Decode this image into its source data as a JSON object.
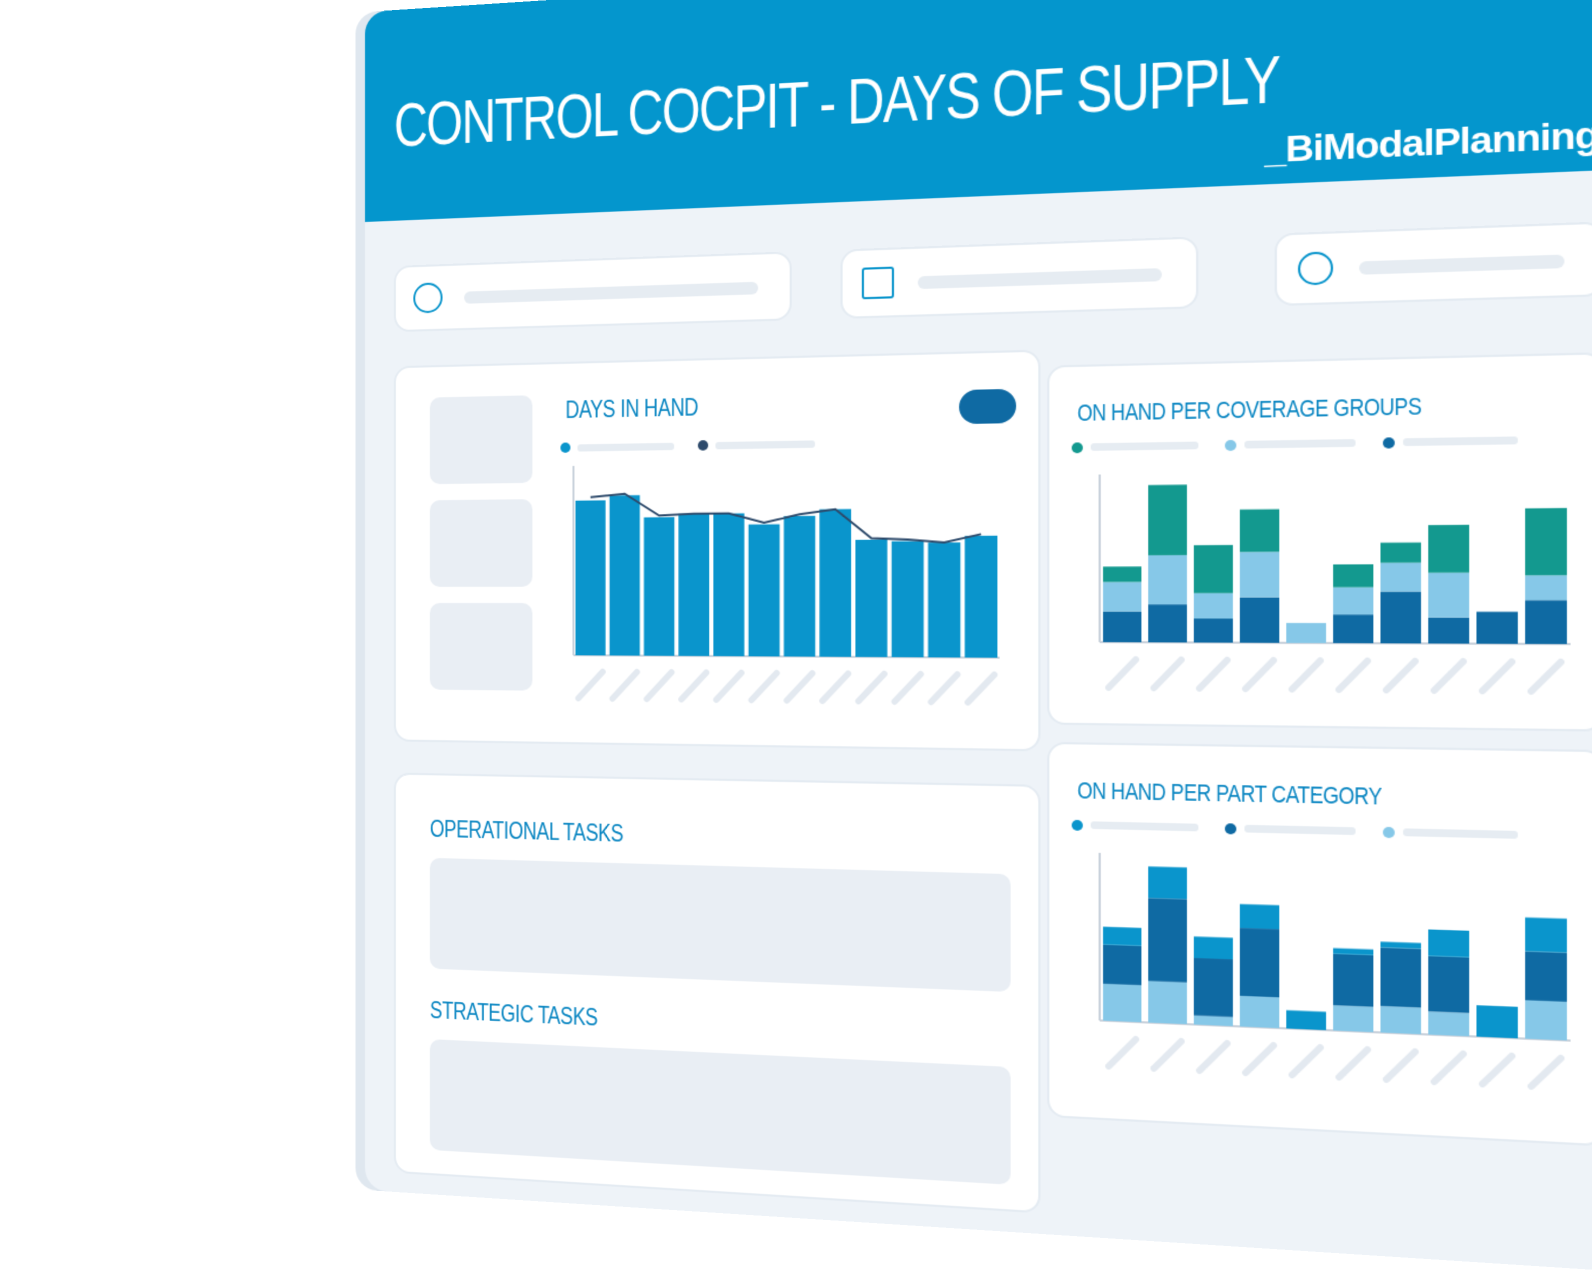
{
  "header": {
    "title": "CONTROL COCPIT - DAYS OF SUPPLY",
    "logo": "_BiModalPlanning"
  },
  "panels": {
    "days_in_hand": {
      "title": "DAYS IN HAND",
      "type": "bar-line",
      "ylim": [
        0,
        120
      ],
      "bar_color": "#0a95cc",
      "line_color": "#2d4a6b",
      "bars": [
        98,
        101,
        87,
        89,
        89,
        82,
        87,
        91,
        72,
        71,
        70,
        74
      ],
      "line": [
        100,
        102,
        88,
        89,
        89,
        83,
        88,
        91,
        73,
        72,
        70,
        75
      ]
    },
    "coverage_groups": {
      "title": "ON HAND PER COVERAGE GROUPS",
      "type": "stacked-bar",
      "ylim": [
        0,
        120
      ],
      "series": [
        {
          "color": "#0f6aa3",
          "values": [
            22,
            27,
            17,
            32,
            0,
            20,
            36,
            18,
            22,
            30
          ]
        },
        {
          "color": "#86c8e8",
          "values": [
            21,
            35,
            18,
            32,
            14,
            19,
            20,
            31,
            0,
            17
          ]
        },
        {
          "color": "#13998f",
          "values": [
            11,
            50,
            34,
            30,
            0,
            16,
            14,
            33,
            0,
            46
          ]
        }
      ],
      "legend_colors": [
        "#13998f",
        "#86c8e8",
        "#0f6aa3"
      ]
    },
    "part_category": {
      "title": "ON HAND PER PART CATEGORY",
      "type": "stacked-bar",
      "ylim": [
        0,
        150
      ],
      "series": [
        {
          "color": "#86c8e8",
          "values": [
            33,
            37,
            8,
            27,
            0,
            22,
            23,
            20,
            0,
            33
          ]
        },
        {
          "color": "#0f6aa3",
          "values": [
            35,
            74,
            51,
            60,
            0,
            45,
            51,
            48,
            0,
            42
          ]
        },
        {
          "color": "#0a95cc",
          "values": [
            16,
            28,
            19,
            21,
            16,
            5,
            5,
            23,
            27,
            29
          ]
        }
      ],
      "legend_colors": [
        "#0a95cc",
        "#0f6aa3",
        "#86c8e8"
      ]
    },
    "operational_tasks": {
      "title": "OPERATIONAL TASKS"
    },
    "strategic_tasks": {
      "title": "STRATEGIC TASKS"
    }
  }
}
